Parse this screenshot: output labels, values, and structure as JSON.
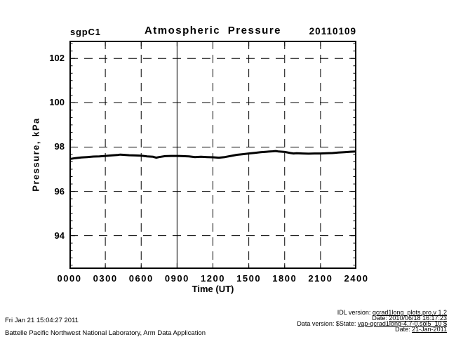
{
  "page": {
    "background": "#ffffff",
    "text_color": "#000000"
  },
  "header": {
    "site": "sgpC1",
    "title": "Atmospheric Pressure",
    "date": "20110109"
  },
  "chart_data": {
    "type": "line",
    "title": "Atmospheric Pressure",
    "site": "sgpC1",
    "date": "20110109",
    "xlabel": "Time (UT)",
    "ylabel": "Pressure, kPa",
    "x_ticks": [
      "0000",
      "0300",
      "0600",
      "0900",
      "1200",
      "1500",
      "1800",
      "2100",
      "2400"
    ],
    "x_tick_interval_minutes": 180,
    "xlim_minutes": [
      0,
      1440
    ],
    "y_ticks": [
      94,
      96,
      98,
      100,
      102
    ],
    "ylim": [
      92.5,
      102.8
    ],
    "grid": "dashed",
    "solid_vertical_gridline_at": "0900",
    "line_color": "#000000",
    "series": [
      {
        "name": "atmospheric_pressure_kPa",
        "x_minutes": [
          0,
          30,
          60,
          90,
          120,
          150,
          180,
          210,
          240,
          255,
          270,
          300,
          330,
          360,
          390,
          420,
          435,
          450,
          480,
          510,
          540,
          570,
          600,
          630,
          660,
          690,
          720,
          750,
          780,
          810,
          840,
          870,
          900,
          930,
          960,
          990,
          1020,
          1035,
          1050,
          1080,
          1110,
          1125,
          1140,
          1170,
          1200,
          1230,
          1260,
          1290,
          1320,
          1350,
          1380,
          1410,
          1440
        ],
        "values": [
          97.46,
          97.5,
          97.53,
          97.55,
          97.57,
          97.58,
          97.6,
          97.62,
          97.64,
          97.66,
          97.65,
          97.63,
          97.62,
          97.61,
          97.58,
          97.56,
          97.52,
          97.55,
          97.59,
          97.6,
          97.6,
          97.59,
          97.58,
          97.55,
          97.56,
          97.55,
          97.54,
          97.52,
          97.55,
          97.6,
          97.65,
          97.68,
          97.71,
          97.74,
          97.77,
          97.79,
          97.81,
          97.82,
          97.8,
          97.78,
          97.73,
          97.71,
          97.72,
          97.71,
          97.7,
          97.71,
          97.71,
          97.72,
          97.73,
          97.75,
          97.77,
          97.79,
          97.8
        ]
      }
    ]
  },
  "footer": {
    "left_lines": [
      "Fri Jan 21 15:04:27 2011",
      "Battelle Pacific Northwest National Laboratory, Arm Data Application"
    ],
    "right_lines": [
      {
        "label": "IDL version: ",
        "value": "qcrad1long_plots.pro,v 1.2"
      },
      {
        "label": "Date: ",
        "value": "2010/06/18 16:17:23"
      },
      {
        "label": "Data version: $State: ",
        "value": "vap-qcrad1long-4.7-0.sol5_10 $"
      },
      {
        "label": "Date: ",
        "value": "21-Jan-2011"
      }
    ]
  }
}
